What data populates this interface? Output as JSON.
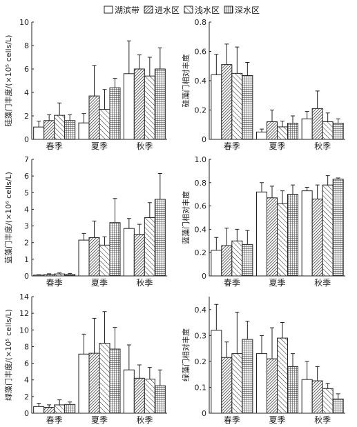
{
  "legend": [
    {
      "name": "湖滨带",
      "pattern": "empty"
    },
    {
      "name": "进水区",
      "pattern": "diag-dense"
    },
    {
      "name": "浅水区",
      "pattern": "diag-sparse"
    },
    {
      "name": "深水区",
      "pattern": "grid"
    }
  ],
  "chart_data": [
    {
      "type": "bar",
      "ylabel": "硅藻门丰度/(×10⁵ cells/L)",
      "categories": [
        "春季",
        "夏季",
        "秋季"
      ],
      "ylim": [
        0,
        10
      ],
      "yticks": [
        0,
        2,
        4,
        6,
        8,
        10
      ],
      "series": [
        {
          "name": "湖滨带",
          "values": [
            1.05,
            1.4,
            5.6
          ],
          "errors": [
            0.5,
            0.8,
            2.8
          ]
        },
        {
          "name": "进水区",
          "values": [
            1.6,
            3.7,
            6.0
          ],
          "errors": [
            0.5,
            2.6,
            1.2
          ]
        },
        {
          "name": "浅水区",
          "values": [
            2.05,
            2.55,
            5.4
          ],
          "errors": [
            1.05,
            1.7,
            1.6
          ]
        },
        {
          "name": "深水区",
          "values": [
            1.6,
            4.4,
            6.0
          ],
          "errors": [
            0.5,
            0.8,
            1.8
          ]
        }
      ]
    },
    {
      "type": "bar",
      "ylabel": "硅藻门相对丰度",
      "categories": [
        "春季",
        "夏季",
        "秋季"
      ],
      "ylim": [
        0,
        0.8
      ],
      "yticks": [
        "0",
        "0.2",
        "0.4",
        "0.6",
        "0.8"
      ],
      "series": [
        {
          "name": "湖滨带",
          "values": [
            0.44,
            0.05,
            0.14
          ],
          "errors": [
            0.14,
            0.02,
            0.05
          ]
        },
        {
          "name": "进水区",
          "values": [
            0.51,
            0.12,
            0.21
          ],
          "errors": [
            0.14,
            0.08,
            0.12
          ]
        },
        {
          "name": "浅水区",
          "values": [
            0.45,
            0.085,
            0.12
          ],
          "errors": [
            0.18,
            0.04,
            0.06
          ]
        },
        {
          "name": "深水区",
          "values": [
            0.435,
            0.11,
            0.11
          ],
          "errors": [
            0.09,
            0.05,
            0.03
          ]
        }
      ]
    },
    {
      "type": "bar",
      "ylabel": "蓝藻门丰度/(×10⁶ cells/L)",
      "categories": [
        "春季",
        "夏季",
        "秋季"
      ],
      "ylim": [
        0,
        7
      ],
      "yticks": [
        0,
        1,
        2,
        3,
        4,
        5,
        6,
        7
      ],
      "series": [
        {
          "name": "湖滨带",
          "values": [
            0.05,
            2.15,
            2.85
          ],
          "errors": [
            0.02,
            0.4,
            0.6
          ]
        },
        {
          "name": "进水区",
          "values": [
            0.08,
            2.3,
            2.5
          ],
          "errors": [
            0.05,
            1.0,
            0.6
          ]
        },
        {
          "name": "浅水区",
          "values": [
            0.12,
            1.85,
            3.5
          ],
          "errors": [
            0.06,
            0.5,
            0.9
          ]
        },
        {
          "name": "深水区",
          "values": [
            0.1,
            3.2,
            4.6
          ],
          "errors": [
            0.05,
            1.45,
            1.55
          ]
        }
      ]
    },
    {
      "type": "bar",
      "ylabel": "蓝藻门相对丰度",
      "categories": [
        "春季",
        "夏季",
        "秋季"
      ],
      "ylim": [
        0,
        1.0
      ],
      "yticks": [
        "0",
        "0.2",
        "0.4",
        "0.6",
        "0.8",
        "1.0"
      ],
      "series": [
        {
          "name": "湖滨带",
          "values": [
            0.22,
            0.72,
            0.73
          ],
          "errors": [
            0.11,
            0.08,
            0.03
          ]
        },
        {
          "name": "进水区",
          "values": [
            0.26,
            0.67,
            0.66
          ],
          "errors": [
            0.15,
            0.1,
            0.12
          ]
        },
        {
          "name": "浅水区",
          "values": [
            0.3,
            0.62,
            0.78
          ],
          "errors": [
            0.1,
            0.11,
            0.08
          ]
        },
        {
          "name": "深水区",
          "values": [
            0.27,
            0.7,
            0.83
          ],
          "errors": [
            0.12,
            0.08,
            0.01
          ]
        }
      ]
    },
    {
      "type": "bar",
      "ylabel": "绿藻门丰度/(×10⁵ cells/L)",
      "categories": [
        "春季",
        "夏季",
        "秋季"
      ],
      "ylim": [
        0,
        14
      ],
      "yticks": [
        0,
        2,
        4,
        6,
        8,
        10,
        12,
        14
      ],
      "series": [
        {
          "name": "湖滨带",
          "values": [
            0.8,
            7.1,
            5.2
          ],
          "errors": [
            0.4,
            2.4,
            3.0
          ]
        },
        {
          "name": "进水区",
          "values": [
            0.7,
            7.2,
            4.2
          ],
          "errors": [
            0.3,
            4.2,
            1.6
          ]
        },
        {
          "name": "浅水区",
          "values": [
            1.0,
            8.4,
            4.1
          ],
          "errors": [
            0.6,
            3.8,
            1.4
          ]
        },
        {
          "name": "深水区",
          "values": [
            1.05,
            7.7,
            3.3
          ],
          "errors": [
            0.3,
            2.6,
            1.9
          ]
        }
      ]
    },
    {
      "type": "bar",
      "ylabel": "绿藻门相对丰度",
      "categories": [
        "春季",
        "夏季",
        "秋季"
      ],
      "ylim": [
        0,
        0.45
      ],
      "yticks": [
        "0",
        "0.1",
        "0.2",
        "0.3",
        "0.4"
      ],
      "series": [
        {
          "name": "湖滨带",
          "values": [
            0.32,
            0.23,
            0.13
          ],
          "errors": [
            0.1,
            0.07,
            0.07
          ]
        },
        {
          "name": "进水区",
          "values": [
            0.215,
            0.21,
            0.125
          ],
          "errors": [
            0.06,
            0.12,
            0.055
          ]
        },
        {
          "name": "浅水区",
          "values": [
            0.23,
            0.29,
            0.095
          ],
          "errors": [
            0.16,
            0.06,
            0.02
          ]
        },
        {
          "name": "深水区",
          "values": [
            0.285,
            0.18,
            0.055
          ],
          "errors": [
            0.07,
            0.05,
            0.02
          ]
        }
      ]
    }
  ]
}
